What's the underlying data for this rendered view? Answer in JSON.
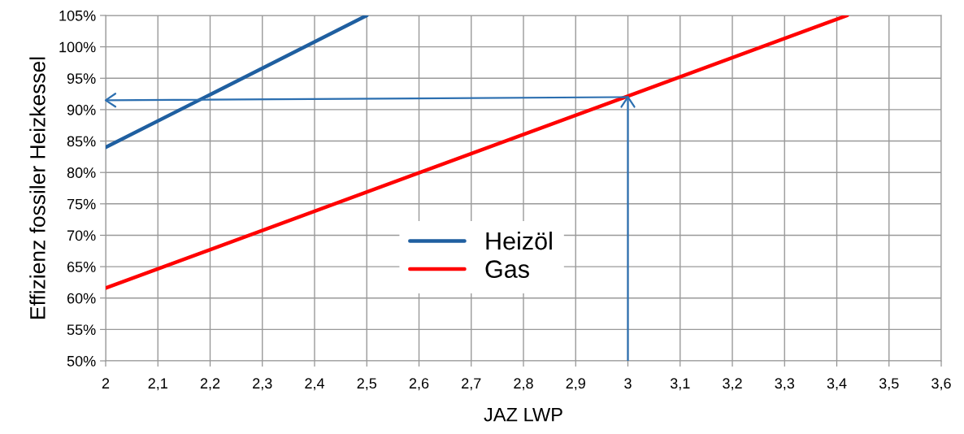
{
  "chart_data": {
    "type": "line",
    "xlabel": "JAZ LWP",
    "ylabel": "Effizienz fossiler Heizkessel",
    "series": [
      {
        "name": "Heizöl",
        "color": "#1f5fa0",
        "x": [
          2,
          2.5
        ],
        "values": [
          84,
          105
        ]
      },
      {
        "name": "Gas",
        "color": "#ff0000",
        "x": [
          2,
          3.42
        ],
        "values": [
          61.6,
          105
        ]
      },
      {
        "color": "#2c6fb0",
        "x": [
          3,
          3,
          2
        ],
        "values": [
          50,
          92,
          91.5
        ]
      }
    ],
    "xlim": [
      2,
      3.6
    ],
    "xticks": [
      2,
      {
        "value": 2.1,
        "label": "2,1"
      },
      {
        "value": 2.2,
        "label": "2,2"
      },
      {
        "value": 2.3,
        "label": "2,3"
      },
      {
        "value": 2.4,
        "label": "2,4"
      },
      {
        "value": 2.5,
        "label": "2,5"
      },
      {
        "value": 2.6,
        "label": "2,6"
      },
      {
        "value": 2.7,
        "label": "2,7"
      },
      {
        "value": 2.8,
        "label": "2,8"
      },
      {
        "value": 2.9,
        "label": "2,9"
      },
      3,
      {
        "value": 3.1,
        "label": "3,1"
      },
      {
        "value": 3.2,
        "label": "3,2"
      },
      {
        "value": 3.3,
        "label": "3,3"
      },
      {
        "value": 3.4,
        "label": "3,4"
      },
      {
        "value": 3.5,
        "label": "3,5"
      },
      {
        "value": 3.6,
        "label": "3,6"
      }
    ],
    "ylim": [
      50,
      105
    ],
    "yticks": [
      {
        "value": 50,
        "label": "50%"
      },
      {
        "value": 55,
        "label": "55%"
      },
      {
        "value": 60,
        "label": "60%"
      },
      {
        "value": 65,
        "label": "65%"
      },
      {
        "value": 70,
        "label": "70%"
      },
      {
        "value": 75,
        "label": "75%"
      },
      {
        "value": 80,
        "label": "80%"
      },
      {
        "value": 85,
        "label": "85%"
      },
      {
        "value": 90,
        "label": "90%"
      },
      {
        "value": 95,
        "label": "95%"
      },
      {
        "value": 100,
        "label": "100%"
      },
      {
        "value": 105,
        "label": "105%"
      }
    ],
    "grid": true,
    "legend": "center",
    "line_style": "solid",
    "marker": "none"
  }
}
